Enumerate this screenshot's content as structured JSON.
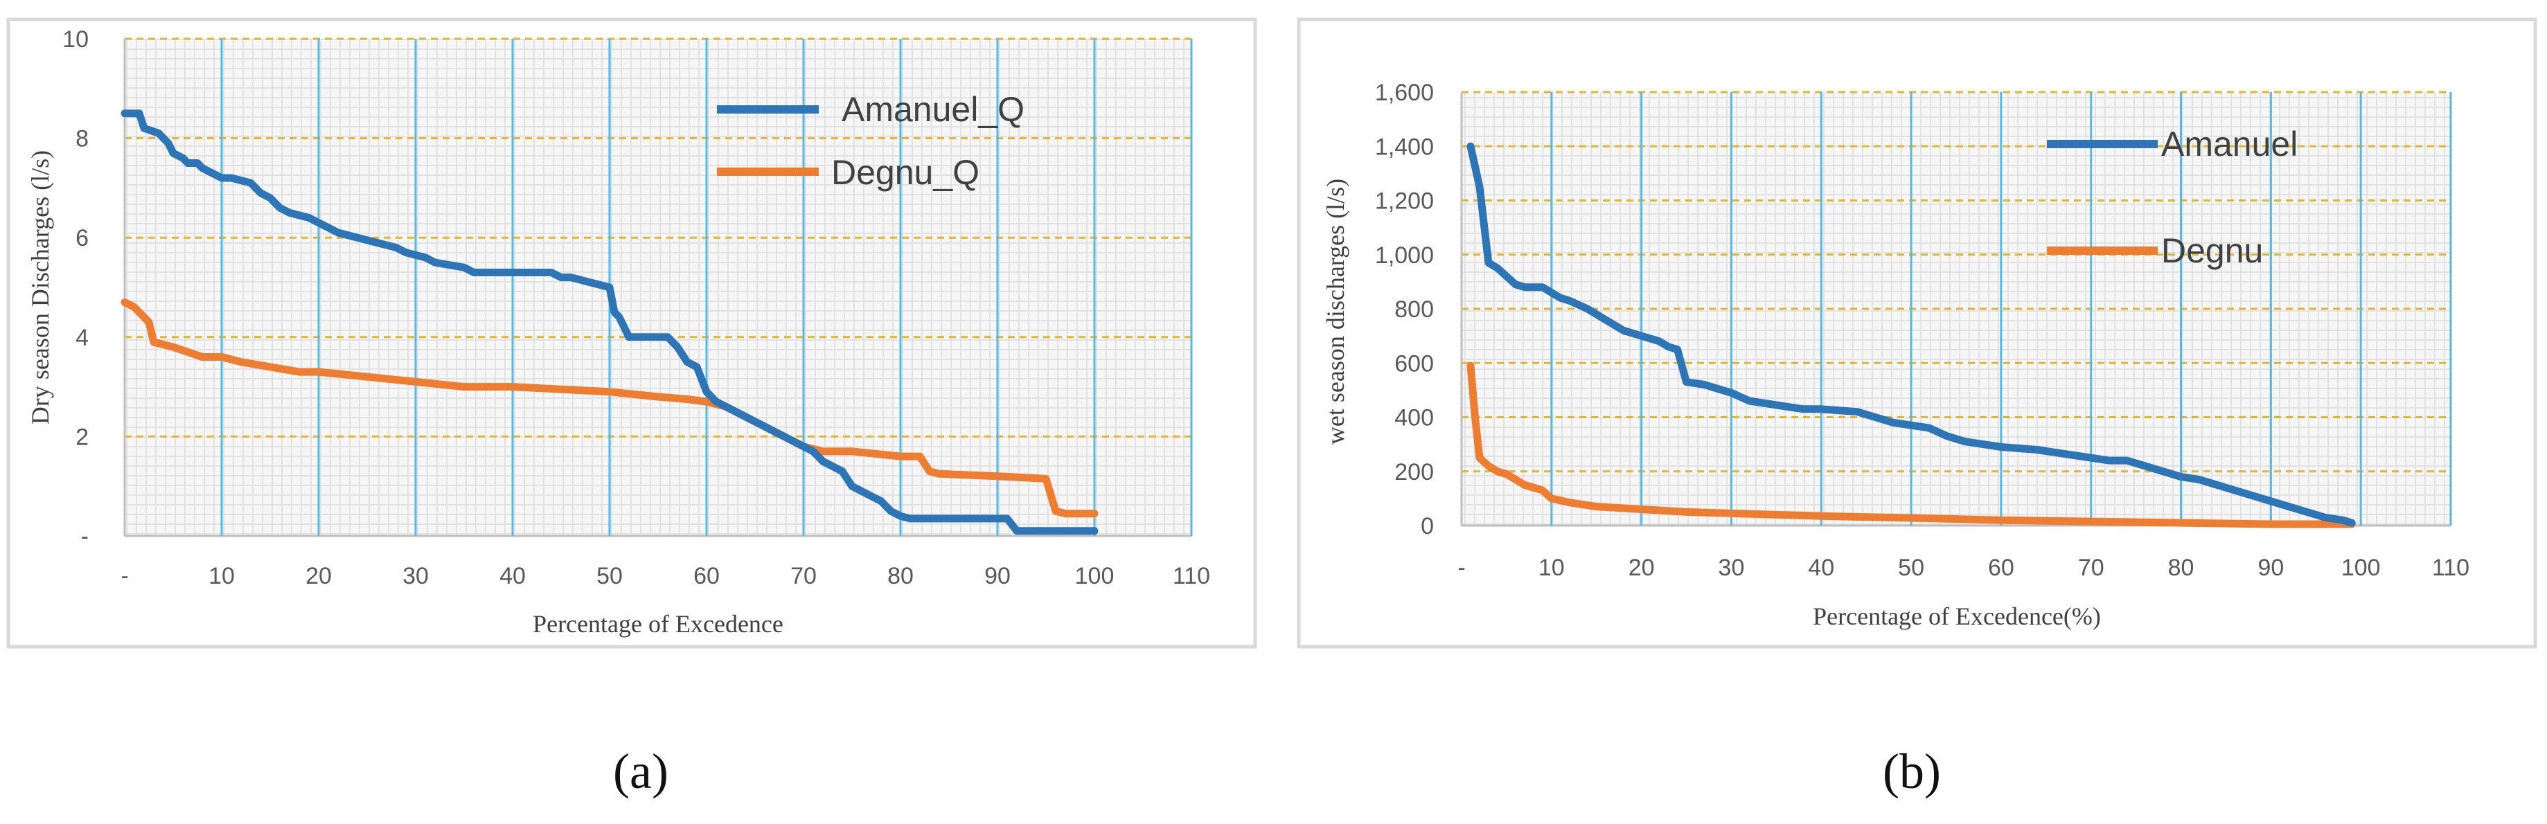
{
  "chart_data": [
    {
      "id": "a",
      "type": "line",
      "caption": "(a)",
      "xlabel": "Percentage of Excedence",
      "ylabel": "Dry season Discharges (l/s)",
      "xlim": [
        0,
        110
      ],
      "ylim": [
        0,
        10
      ],
      "x_ticks": [
        0,
        10,
        20,
        30,
        40,
        50,
        60,
        70,
        80,
        90,
        100,
        110
      ],
      "x_tick_labels": [
        "-",
        "10",
        "20",
        "30",
        "40",
        "50",
        "60",
        "70",
        "80",
        "90",
        "100",
        "110"
      ],
      "y_ticks": [
        0,
        2,
        4,
        6,
        8,
        10
      ],
      "y_tick_labels": [
        "-",
        "2",
        "4",
        "6",
        "8",
        "10"
      ],
      "grid": true,
      "legend_position": "top-right",
      "series": [
        {
          "name": "Amanuel_Q",
          "color": "#2e75b6",
          "x": [
            0,
            1.5,
            2,
            3.5,
            4.5,
            5,
            6,
            6.5,
            7.5,
            8,
            9,
            10,
            11,
            13,
            14,
            15,
            16,
            17,
            19,
            20,
            21,
            22,
            24,
            26,
            28,
            29,
            31,
            32,
            35,
            36,
            40,
            44,
            45,
            46,
            48,
            50,
            50.5,
            51,
            52,
            56,
            57,
            58,
            59,
            60,
            61,
            62,
            63,
            64,
            66,
            68,
            70,
            71,
            72,
            74,
            75,
            77,
            78,
            79,
            80,
            81,
            85,
            91,
            92,
            95,
            100
          ],
          "y": [
            8.5,
            8.5,
            8.2,
            8.1,
            7.9,
            7.7,
            7.6,
            7.5,
            7.5,
            7.4,
            7.3,
            7.2,
            7.2,
            7.1,
            6.9,
            6.8,
            6.6,
            6.5,
            6.4,
            6.3,
            6.2,
            6.1,
            6.0,
            5.9,
            5.8,
            5.7,
            5.6,
            5.5,
            5.4,
            5.3,
            5.3,
            5.3,
            5.2,
            5.2,
            5.1,
            5.0,
            4.5,
            4.4,
            4.0,
            4.0,
            3.8,
            3.5,
            3.4,
            2.9,
            2.7,
            2.6,
            2.5,
            2.4,
            2.2,
            2.0,
            1.8,
            1.7,
            1.5,
            1.3,
            1.0,
            0.8,
            0.7,
            0.5,
            0.4,
            0.35,
            0.35,
            0.35,
            0.1,
            0.1,
            0.1
          ]
        },
        {
          "name": "Degnu_Q",
          "color": "#ed7d31",
          "x": [
            0,
            1,
            1.5,
            2.5,
            3,
            5,
            6.5,
            8,
            10,
            12,
            15,
            18,
            20,
            25,
            30,
            35,
            40,
            45,
            50,
            55,
            58,
            60,
            62,
            64,
            66,
            68,
            70,
            72,
            75,
            80,
            82,
            83,
            84,
            90,
            95,
            96,
            97,
            100
          ],
          "y": [
            4.7,
            4.6,
            4.5,
            4.3,
            3.9,
            3.8,
            3.7,
            3.6,
            3.6,
            3.5,
            3.4,
            3.3,
            3.3,
            3.2,
            3.1,
            3.0,
            3.0,
            2.95,
            2.9,
            2.8,
            2.75,
            2.7,
            2.6,
            2.4,
            2.2,
            2.0,
            1.8,
            1.7,
            1.7,
            1.6,
            1.6,
            1.3,
            1.25,
            1.2,
            1.15,
            0.5,
            0.45,
            0.45
          ]
        }
      ]
    },
    {
      "id": "b",
      "type": "line",
      "caption": "(b)",
      "xlabel": "Percentage of Excedence(%)",
      "ylabel": "wet season discharges (l/s)",
      "xlim": [
        0,
        110
      ],
      "ylim": [
        0,
        1600
      ],
      "x_ticks": [
        0,
        10,
        20,
        30,
        40,
        50,
        60,
        70,
        80,
        90,
        100,
        110
      ],
      "x_tick_labels": [
        "-",
        "10",
        "20",
        "30",
        "40",
        "50",
        "60",
        "70",
        "80",
        "90",
        "100",
        "110"
      ],
      "y_ticks": [
        0,
        200,
        400,
        600,
        800,
        1000,
        1200,
        1400,
        1600
      ],
      "y_tick_labels": [
        "0",
        "200",
        "400",
        "600",
        "800",
        "1,000",
        "1,200",
        "1,400",
        "1,600"
      ],
      "grid": true,
      "legend_position": "top-right",
      "series": [
        {
          "name": "Amanuel",
          "color": "#2e75b6",
          "x": [
            1,
            2,
            3,
            4,
            5,
            6,
            7,
            9,
            10,
            11,
            12,
            14,
            16,
            18,
            20,
            22,
            23,
            24,
            25,
            26,
            27,
            28,
            30,
            32,
            34,
            36,
            38,
            40,
            44,
            46,
            48,
            50,
            52,
            54,
            56,
            58,
            60,
            64,
            66,
            68,
            70,
            72,
            74,
            76,
            78,
            80,
            82,
            84,
            86,
            88,
            90,
            92,
            94,
            96,
            98,
            99
          ],
          "y": [
            1400,
            1250,
            970,
            950,
            920,
            890,
            880,
            880,
            860,
            840,
            830,
            800,
            760,
            720,
            700,
            680,
            660,
            650,
            530,
            525,
            520,
            510,
            490,
            460,
            450,
            440,
            430,
            430,
            420,
            400,
            380,
            370,
            360,
            330,
            310,
            300,
            290,
            280,
            270,
            260,
            250,
            240,
            240,
            220,
            200,
            180,
            170,
            150,
            130,
            110,
            90,
            70,
            50,
            30,
            20,
            10
          ]
        },
        {
          "name": "Degnu",
          "color": "#ed7d31",
          "x": [
            1,
            1.5,
            2,
            3,
            4,
            5,
            6,
            7,
            8,
            9,
            10,
            12,
            15,
            20,
            25,
            30,
            40,
            50,
            60,
            70,
            80,
            90,
            99
          ],
          "y": [
            590,
            400,
            250,
            220,
            200,
            190,
            170,
            150,
            140,
            130,
            100,
            85,
            70,
            60,
            50,
            45,
            35,
            28,
            20,
            15,
            10,
            5,
            5
          ]
        }
      ]
    }
  ]
}
